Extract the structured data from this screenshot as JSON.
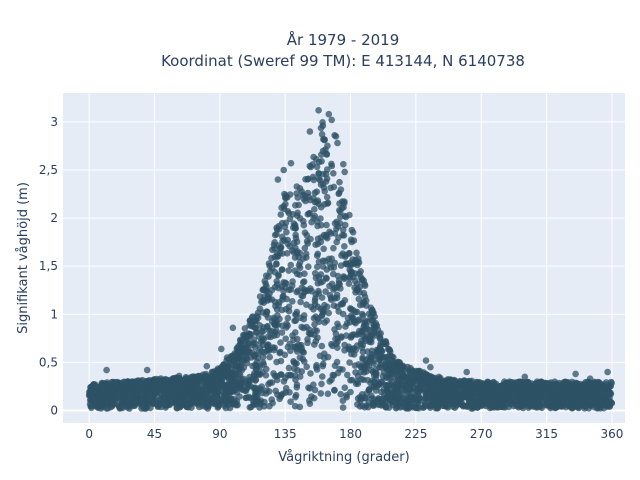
{
  "chart_data": {
    "type": "scatter",
    "title": "År 1979 - 2019",
    "subtitle": "Koordinat (Sweref 99 TM): E 413144, N 6140738",
    "xlabel": "Vågriktning (grader)",
    "ylabel": "Signifikant våghöjd (m)",
    "xlim": [
      -18,
      369
    ],
    "ylim": [
      -0.13,
      3.3
    ],
    "xticks": [
      0,
      45,
      90,
      135,
      180,
      225,
      270,
      315,
      360
    ],
    "xtick_labels": [
      "0",
      "45",
      "90",
      "135",
      "180",
      "225",
      "270",
      "315",
      "360"
    ],
    "yticks": [
      0,
      0.5,
      1,
      1.5,
      2,
      2.5,
      3
    ],
    "ytick_labels": [
      "0",
      "0,5",
      "1",
      "1,5",
      "2",
      "2,5",
      "3"
    ],
    "grid": true,
    "colors": {
      "marker": "#2e5266",
      "plot_bg": "#e5ecf6",
      "grid": "#ffffff",
      "text": "#2a3f5f"
    },
    "series": [
      {
        "envelope": {
          "x": [
            0,
            20,
            45,
            70,
            80,
            90,
            100,
            110,
            115,
            120,
            125,
            130,
            135,
            140,
            145,
            150,
            155,
            160,
            165,
            170,
            175,
            180,
            185,
            190,
            195,
            200,
            205,
            210,
            220,
            230,
            245,
            270,
            315,
            360
          ],
          "ymax": [
            0.28,
            0.3,
            0.33,
            0.35,
            0.38,
            0.45,
            0.6,
            0.95,
            1.1,
            1.3,
            1.6,
            2.0,
            2.35,
            2.3,
            2.35,
            2.5,
            2.7,
            3.05,
            2.75,
            2.55,
            2.3,
            2.0,
            1.6,
            1.3,
            1.05,
            0.85,
            0.7,
            0.55,
            0.45,
            0.4,
            0.33,
            0.3,
            0.3,
            0.3
          ]
        },
        "outliers": [
          [
            158,
            3.12
          ],
          [
            165,
            3.08
          ],
          [
            167,
            3.02
          ],
          [
            161,
            2.96
          ],
          [
            152,
            2.9
          ],
          [
            169,
            2.86
          ],
          [
            139,
            2.57
          ],
          [
            134,
            2.5
          ],
          [
            170,
            2.85
          ],
          [
            171,
            2.78
          ],
          [
            99,
            0.86
          ],
          [
            91,
            0.64
          ],
          [
            130,
            2.4
          ],
          [
            176,
            2.48
          ],
          [
            175,
            2.56
          ],
          [
            12,
            0.42
          ],
          [
            40,
            0.42
          ],
          [
            357,
            0.4
          ],
          [
            335,
            0.38
          ],
          [
            345,
            0.33
          ],
          [
            232,
            0.52
          ],
          [
            235,
            0.45
          ],
          [
            260,
            0.4
          ],
          [
            300,
            0.35
          ],
          [
            62,
            0.36
          ],
          [
            81,
            0.46
          ],
          [
            95,
            0.55
          ]
        ]
      }
    ]
  }
}
